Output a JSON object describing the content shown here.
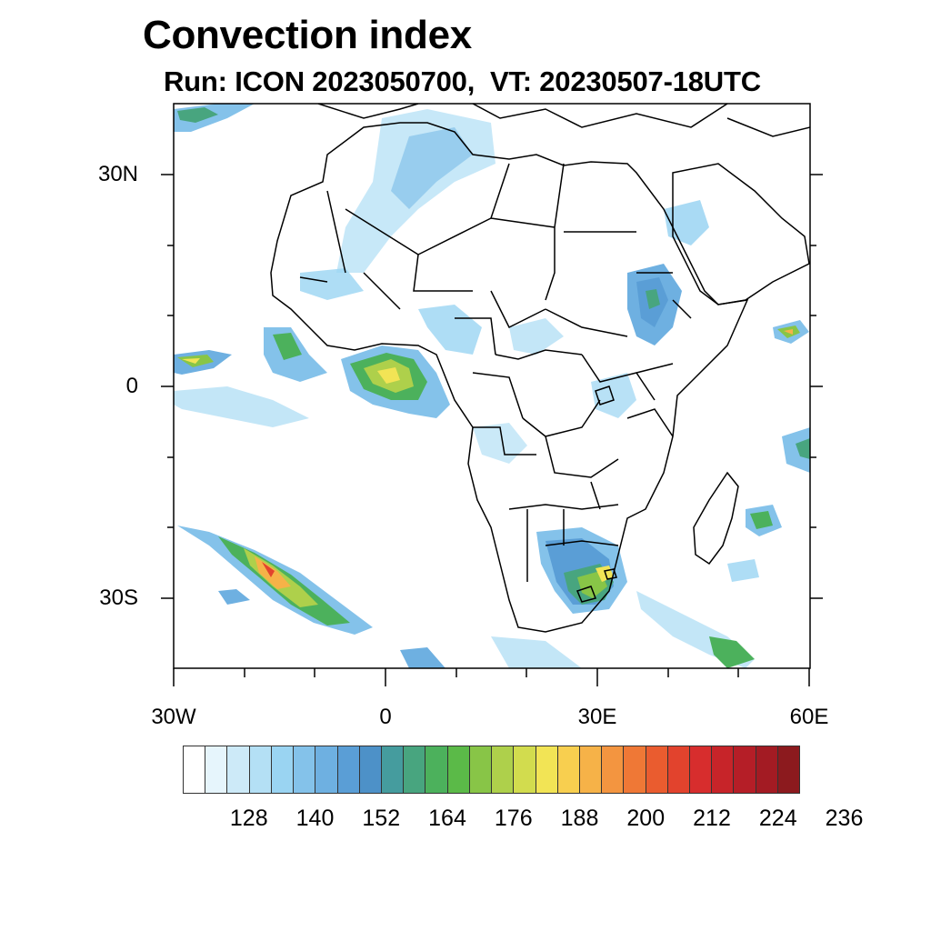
{
  "title": "Convection index",
  "subtitle": "Run: ICON 2023050700,  VT: 20230507-18UTC",
  "map": {
    "projection": "lat-lon",
    "lon_range": [
      -30,
      60
    ],
    "lat_range": [
      -40,
      40
    ],
    "y_ticks": [
      {
        "lat": 30,
        "label": "30N"
      },
      {
        "lat": 0,
        "label": "0"
      },
      {
        "lat": -30,
        "label": "30S"
      }
    ],
    "x_ticks": [
      {
        "lon": -30,
        "label": "30W"
      },
      {
        "lon": 0,
        "label": "0"
      },
      {
        "lon": 30,
        "label": "30E"
      },
      {
        "lon": 60,
        "label": "60E"
      }
    ]
  },
  "colorbar": {
    "colors": [
      "#ffffff",
      "#e6f5fc",
      "#cdeaf8",
      "#b4e0f5",
      "#9ad4f2",
      "#84c2ea",
      "#6eb0e1",
      "#5a9ed6",
      "#4d91c8",
      "#459c9e",
      "#48a57f",
      "#4cb15c",
      "#5bba48",
      "#88c547",
      "#aed04b",
      "#d2dc4e",
      "#f2e455",
      "#f8cf4f",
      "#f6b248",
      "#f39540",
      "#ef7836",
      "#ea5c2f",
      "#e2432d",
      "#d72d2d",
      "#c72429",
      "#b51e27",
      "#a31b23",
      "#8c1a1e"
    ],
    "labels": [
      "128",
      "140",
      "152",
      "164",
      "176",
      "188",
      "200",
      "212",
      "224",
      "236"
    ]
  }
}
